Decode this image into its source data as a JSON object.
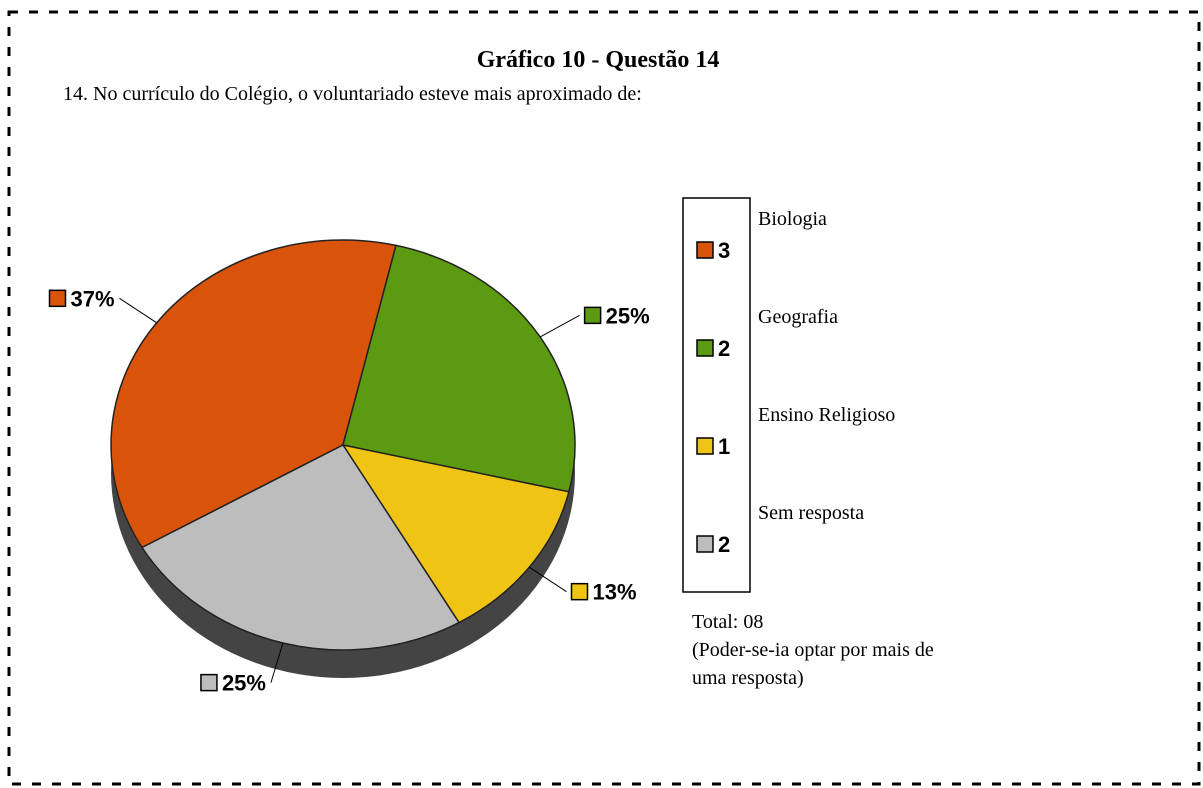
{
  "chart_data": {
    "type": "pie",
    "title": "Gráfico 10 - Questão 14",
    "subtitle": "14. No currículo do Colégio, o voluntariado esteve mais aproximado de:",
    "categories": [
      "Biologia",
      "Geografia",
      "Ensino Religioso",
      "Sem resposta"
    ],
    "values": [
      37,
      25,
      13,
      25
    ],
    "value_labels": [
      "37%",
      "25%",
      "13%",
      "25%"
    ],
    "counts": [
      3,
      2,
      1,
      2
    ],
    "colors": [
      "#d9540a",
      "#5c9a12",
      "#f0c414",
      "#bdbdbd"
    ],
    "notes": [
      "Total: 08",
      "(Poder-se-ia optar por mais de",
      "uma resposta)"
    ]
  }
}
